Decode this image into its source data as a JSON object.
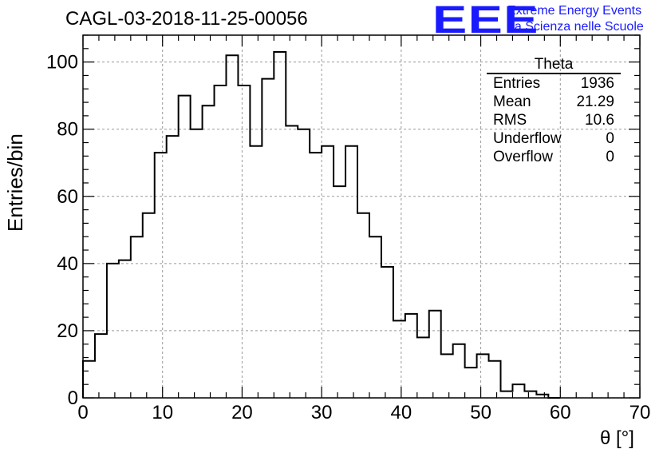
{
  "header": {
    "title": "CAGL-03-2018-11-25-00056",
    "logo": "EEE",
    "logo_line1": "Extreme Energy Events",
    "logo_line2": "La Scienza nelle Scuole"
  },
  "stats": {
    "title": "Theta",
    "rows": [
      {
        "label": "Entries",
        "value": "1936"
      },
      {
        "label": "Mean",
        "value": "21.29"
      },
      {
        "label": "RMS",
        "value": "10.6"
      },
      {
        "label": "Underflow",
        "value": "0"
      },
      {
        "label": "Overflow",
        "value": "0"
      }
    ]
  },
  "chart_data": {
    "type": "histogram",
    "title": "CAGL-03-2018-11-25-00056",
    "xlabel": "θ [°]",
    "ylabel": "Entries/bin",
    "xlim": [
      0,
      70
    ],
    "ylim": [
      0,
      108
    ],
    "bin_width": 1.5,
    "x_ticks": [
      0,
      10,
      20,
      30,
      40,
      50,
      60,
      70
    ],
    "y_ticks": [
      0,
      20,
      40,
      60,
      80,
      100
    ],
    "grid": true,
    "values": [
      11,
      19,
      40,
      41,
      48,
      55,
      73,
      78,
      90,
      80,
      87,
      93,
      102,
      93,
      75,
      95,
      103,
      81,
      80,
      73,
      75,
      63,
      75,
      55,
      48,
      39,
      23,
      25,
      18,
      26,
      13,
      16,
      9,
      13,
      11,
      2,
      4,
      2,
      1,
      0
    ]
  }
}
